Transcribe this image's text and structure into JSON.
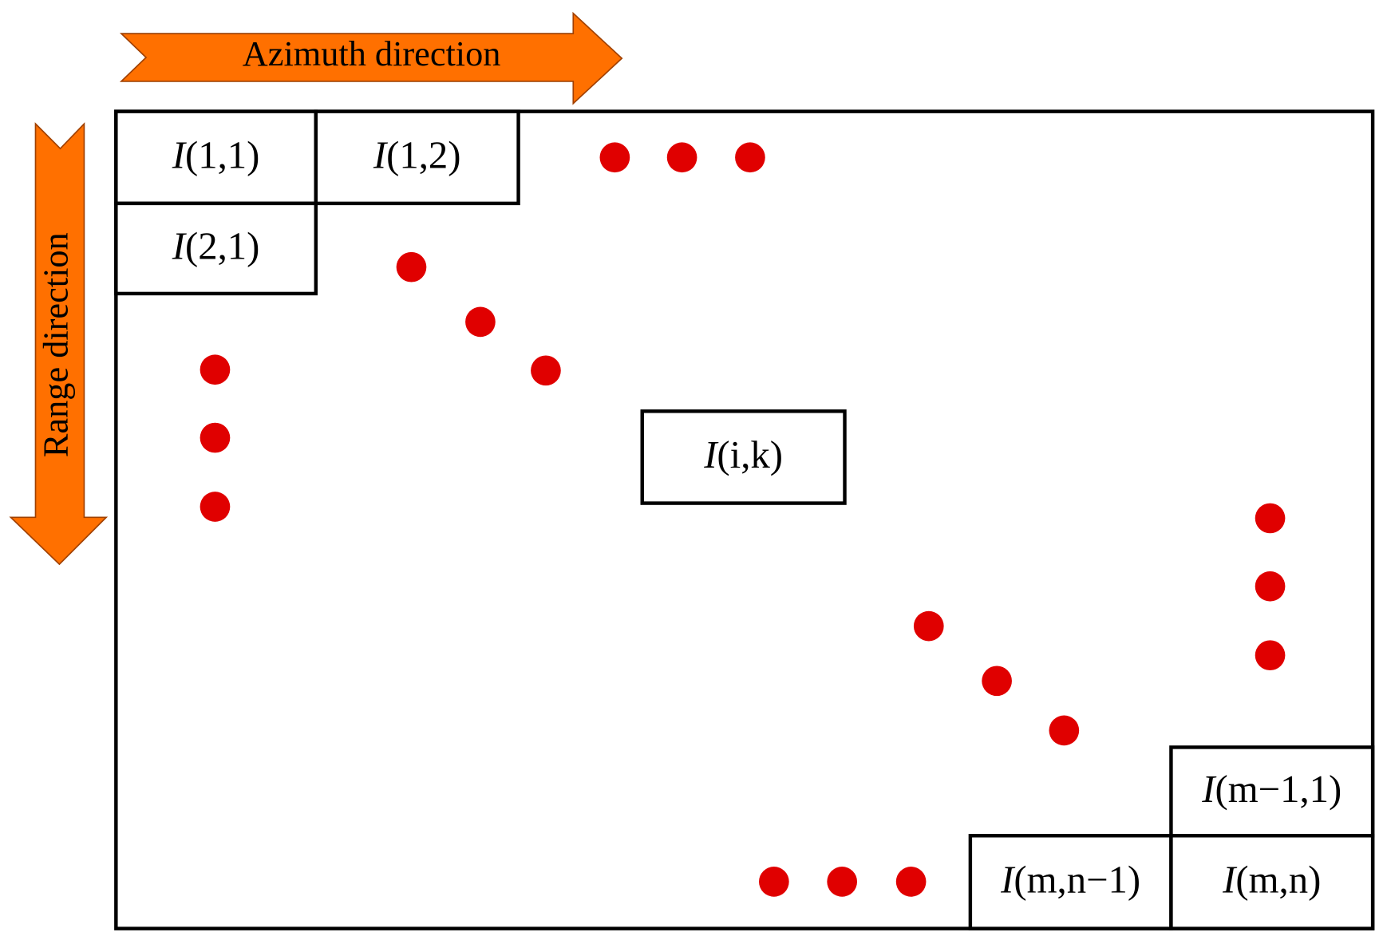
{
  "arrows": {
    "azimuth": "Azimuth direction",
    "range": "Range direction"
  },
  "cells": [
    {
      "symbol": "I",
      "index": "(1,1)"
    },
    {
      "symbol": "I",
      "index": "(1,2)"
    },
    {
      "symbol": "I",
      "index": "(2,1)"
    },
    {
      "symbol": "I",
      "index": "(i,k)"
    },
    {
      "symbol": "I",
      "index": "(m−1,1)"
    },
    {
      "symbol": "I",
      "index": "(m,n−1)"
    },
    {
      "symbol": "I",
      "index": "(m,n)"
    }
  ]
}
